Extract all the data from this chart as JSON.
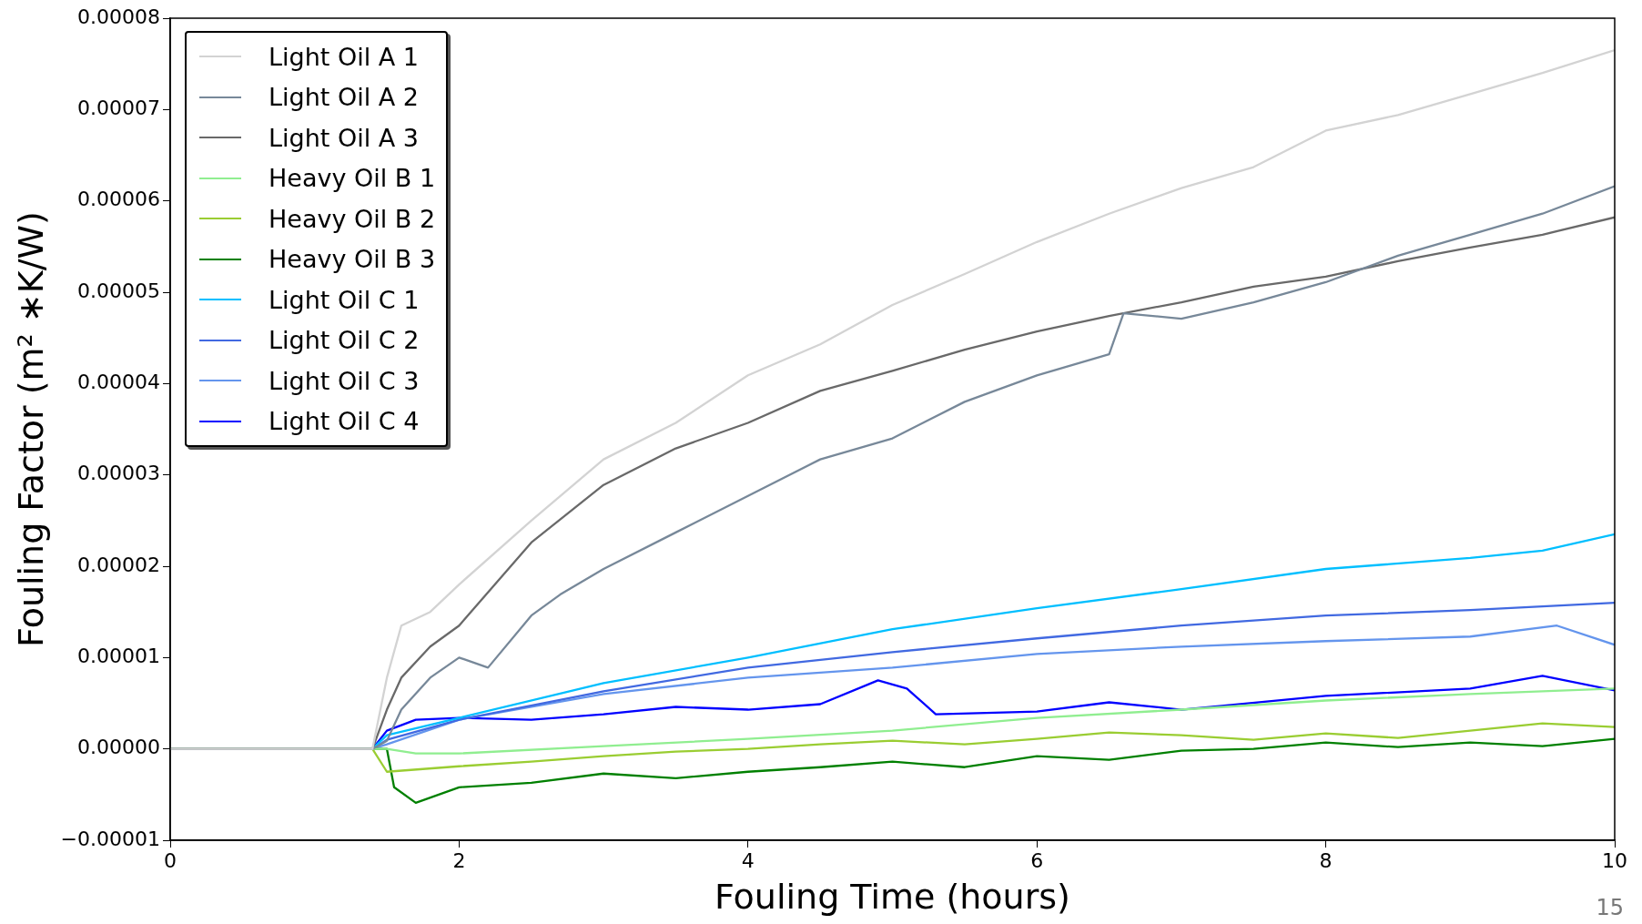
{
  "chart_data": {
    "type": "line",
    "xlabel": "Fouling Time (hours)",
    "ylabel": "Fouling Factor (m² ∗K/W)",
    "xlim": [
      0,
      10
    ],
    "xticks": [
      0,
      2,
      4,
      6,
      8,
      10
    ],
    "ylim": [
      -1e-05,
      8e-05
    ],
    "yticks": [
      {
        "value": -1e-05,
        "label": "−0.00001"
      },
      {
        "value": 0,
        "label": "0.00000"
      },
      {
        "value": 1e-05,
        "label": "0.00001"
      },
      {
        "value": 2e-05,
        "label": "0.00002"
      },
      {
        "value": 3e-05,
        "label": "0.00003"
      },
      {
        "value": 4e-05,
        "label": "0.00004"
      },
      {
        "value": 5e-05,
        "label": "0.00005"
      },
      {
        "value": 6e-05,
        "label": "0.00006"
      },
      {
        "value": 7e-05,
        "label": "0.00007"
      },
      {
        "value": 8e-05,
        "label": "0.00008"
      }
    ],
    "grid": false,
    "legend": "top left",
    "line_style": "solid",
    "marker": "none",
    "annotations": [
      "15"
    ],
    "series": [
      {
        "name": "Light Oil A 1",
        "color": "#d3d3d3",
        "x": [
          0,
          1.4,
          1.5,
          1.6,
          1.8,
          2,
          2.5,
          3,
          3.5,
          4,
          4.5,
          5,
          5.5,
          6,
          6.5,
          7,
          7.5,
          8,
          8.5,
          9,
          9.5,
          10
        ],
        "values": [
          0,
          0,
          7.8e-06,
          1.35e-05,
          1.5e-05,
          1.8e-05,
          2.5e-05,
          3.17e-05,
          3.57e-05,
          4.09e-05,
          4.43e-05,
          4.86e-05,
          5.2e-05,
          5.55e-05,
          5.86e-05,
          6.14e-05,
          6.37e-05,
          6.77e-05,
          6.94e-05,
          7.17e-05,
          7.4e-05,
          7.65e-05
        ]
      },
      {
        "name": "Light Oil A 2",
        "color": "#778899",
        "x": [
          0,
          1.4,
          1.5,
          1.6,
          1.8,
          2,
          2.2,
          2.5,
          2.7,
          3,
          3.5,
          4,
          4.5,
          5,
          5.5,
          6,
          6.5,
          6.6,
          7,
          7.5,
          8,
          8.5,
          9,
          9.5,
          10
        ],
        "values": [
          0,
          0,
          9e-07,
          4.3e-06,
          7.8e-06,
          1e-05,
          8.9e-06,
          1.46e-05,
          1.69e-05,
          1.97e-05,
          2.37e-05,
          2.77e-05,
          3.17e-05,
          3.4e-05,
          3.8e-05,
          4.09e-05,
          4.32e-05,
          4.77e-05,
          4.71e-05,
          4.89e-05,
          5.11e-05,
          5.4e-05,
          5.63e-05,
          5.86e-05,
          6.16e-05
        ]
      },
      {
        "name": "Light Oil A 3",
        "color": "#696969",
        "x": [
          0,
          1.4,
          1.5,
          1.6,
          1.8,
          2,
          2.5,
          3,
          3.5,
          4,
          4.5,
          5,
          5.5,
          6,
          6.5,
          7,
          7.5,
          8,
          8.5,
          9,
          9.5,
          10
        ],
        "values": [
          0,
          0,
          4.3e-06,
          7.8e-06,
          1.12e-05,
          1.35e-05,
          2.26e-05,
          2.89e-05,
          3.29e-05,
          3.57e-05,
          3.92e-05,
          4.14e-05,
          4.37e-05,
          4.57e-05,
          4.74e-05,
          4.89e-05,
          5.06e-05,
          5.17e-05,
          5.34e-05,
          5.49e-05,
          5.63e-05,
          5.82e-05
        ]
      },
      {
        "name": "Heavy Oil B 1",
        "color": "#90ee90",
        "x": [
          0,
          1.4,
          1.5,
          1.7,
          2,
          3,
          4,
          5,
          6,
          7,
          8,
          9,
          10
        ],
        "values": [
          0,
          0,
          0,
          -5e-07,
          -5e-07,
          3e-07,
          1.1e-06,
          2e-06,
          3.4e-06,
          4.3e-06,
          5.3e-06,
          6e-06,
          6.6e-06
        ]
      },
      {
        "name": "Heavy Oil B 2",
        "color": "#9acd32",
        "x": [
          0,
          1.4,
          1.5,
          2,
          2.5,
          3,
          3.5,
          4,
          4.5,
          5,
          5.5,
          6,
          6.5,
          7,
          7.5,
          8,
          8.5,
          9,
          9.5,
          10
        ],
        "values": [
          0,
          0,
          -2.5e-06,
          -1.9e-06,
          -1.4e-06,
          -8e-07,
          -3e-07,
          0,
          5e-07,
          9e-07,
          5e-07,
          1.1e-06,
          1.8e-06,
          1.5e-06,
          1e-06,
          1.7e-06,
          1.2e-06,
          2e-06,
          2.8e-06,
          2.4e-06
        ]
      },
      {
        "name": "Heavy Oil B 3",
        "color": "#008000",
        "x": [
          0,
          1.4,
          1.5,
          1.55,
          1.7,
          2,
          2.5,
          3,
          3.5,
          4,
          4.5,
          5,
          5.5,
          6,
          6.5,
          7,
          7.5,
          8,
          8.5,
          9,
          9.5,
          10
        ],
        "values": [
          0,
          0,
          0,
          -4.2e-06,
          -5.9e-06,
          -4.2e-06,
          -3.7e-06,
          -2.7e-06,
          -3.2e-06,
          -2.5e-06,
          -2e-06,
          -1.4e-06,
          -2e-06,
          -8e-07,
          -1.2e-06,
          -2e-07,
          0,
          7e-07,
          2e-07,
          7e-07,
          3e-07,
          1.1e-06
        ]
      },
      {
        "name": "Light Oil C 1",
        "color": "#00bfff",
        "x": [
          0,
          1.4,
          1.5,
          2,
          3,
          4,
          5,
          6,
          7,
          8,
          9,
          9.5,
          10
        ],
        "values": [
          0,
          0,
          1.5e-06,
          3.4e-06,
          7.2e-06,
          1e-05,
          1.31e-05,
          1.54e-05,
          1.75e-05,
          1.97e-05,
          2.09e-05,
          2.17e-05,
          2.35e-05
        ]
      },
      {
        "name": "Light Oil C 2",
        "color": "#4169e1",
        "x": [
          0,
          1.4,
          1.5,
          2,
          3,
          4,
          5,
          6,
          7,
          8,
          9,
          10
        ],
        "values": [
          0,
          0,
          1e-06,
          3.2e-06,
          6.3e-06,
          8.9e-06,
          1.06e-05,
          1.21e-05,
          1.35e-05,
          1.46e-05,
          1.52e-05,
          1.6e-05
        ]
      },
      {
        "name": "Light Oil C 3",
        "color": "#6495ed",
        "x": [
          0,
          1.4,
          1.5,
          2,
          3,
          4,
          5,
          6,
          7,
          8,
          9,
          9.6,
          10
        ],
        "values": [
          0,
          0,
          5e-07,
          3.2e-06,
          6e-06,
          7.8e-06,
          8.9e-06,
          1.04e-05,
          1.12e-05,
          1.18e-05,
          1.23e-05,
          1.35e-05,
          1.14e-05
        ]
      },
      {
        "name": "Light Oil C 4",
        "color": "#0000ff",
        "x": [
          0,
          1.4,
          1.5,
          1.7,
          2,
          2.5,
          3,
          3.5,
          4,
          4.5,
          4.9,
          5.1,
          5.3,
          6,
          6.5,
          7,
          8,
          9,
          9.5,
          10
        ],
        "values": [
          0,
          0,
          2e-06,
          3.2e-06,
          3.4e-06,
          3.2e-06,
          3.8e-06,
          4.6e-06,
          4.3e-06,
          4.9e-06,
          7.5e-06,
          6.6e-06,
          3.8e-06,
          4.1e-06,
          5.1e-06,
          4.3e-06,
          5.8e-06,
          6.6e-06,
          8e-06,
          6.4e-06
        ]
      }
    ]
  }
}
